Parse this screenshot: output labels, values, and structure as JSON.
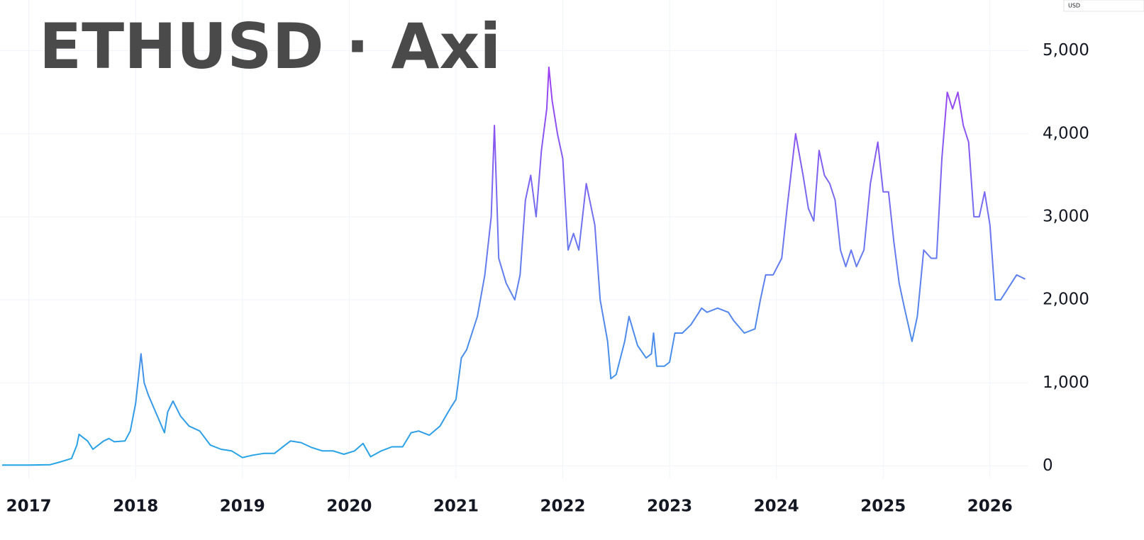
{
  "chart_data": {
    "type": "line",
    "title": "ETHUSD · Axi",
    "y_unit": "USD",
    "x": [
      2016.75,
      2017.0,
      2017.2,
      2017.3,
      2017.4,
      2017.45,
      2017.47,
      2017.55,
      2017.6,
      2017.7,
      2017.75,
      2017.8,
      2017.9,
      2017.95,
      2018.0,
      2018.03,
      2018.05,
      2018.08,
      2018.12,
      2018.17,
      2018.22,
      2018.27,
      2018.3,
      2018.35,
      2018.42,
      2018.5,
      2018.6,
      2018.7,
      2018.8,
      2018.9,
      2019.0,
      2019.1,
      2019.2,
      2019.3,
      2019.4,
      2019.45,
      2019.55,
      2019.65,
      2019.75,
      2019.85,
      2019.95,
      2020.05,
      2020.13,
      2020.2,
      2020.3,
      2020.4,
      2020.5,
      2020.58,
      2020.65,
      2020.75,
      2020.85,
      2020.95,
      2021.0,
      2021.05,
      2021.1,
      2021.15,
      2021.2,
      2021.27,
      2021.33,
      2021.36,
      2021.4,
      2021.47,
      2021.55,
      2021.6,
      2021.65,
      2021.7,
      2021.75,
      2021.8,
      2021.85,
      2021.87,
      2021.9,
      2021.95,
      2022.0,
      2022.05,
      2022.1,
      2022.15,
      2022.22,
      2022.3,
      2022.35,
      2022.42,
      2022.45,
      2022.5,
      2022.58,
      2022.62,
      2022.7,
      2022.78,
      2022.83,
      2022.85,
      2022.88,
      2022.95,
      2023.0,
      2023.05,
      2023.12,
      2023.2,
      2023.3,
      2023.35,
      2023.45,
      2023.55,
      2023.6,
      2023.7,
      2023.8,
      2023.85,
      2023.9,
      2023.97,
      2024.05,
      2024.1,
      2024.18,
      2024.25,
      2024.3,
      2024.35,
      2024.4,
      2024.45,
      2024.5,
      2024.55,
      2024.6,
      2024.65,
      2024.7,
      2024.75,
      2024.82,
      2024.88,
      2024.95,
      2025.0,
      2025.05,
      2025.1,
      2025.15,
      2025.2,
      2025.27,
      2025.32,
      2025.38,
      2025.45,
      2025.5,
      2025.55,
      2025.6,
      2025.65,
      2025.7,
      2025.75,
      2025.8,
      2025.85,
      2025.9,
      2025.95,
      2026.0,
      2026.05,
      2026.1,
      2026.15,
      2026.25,
      2026.33
    ],
    "values": [
      10,
      10,
      15,
      50,
      90,
      250,
      380,
      300,
      200,
      300,
      330,
      290,
      300,
      420,
      750,
      1100,
      1350,
      1000,
      850,
      700,
      550,
      400,
      650,
      780,
      600,
      480,
      420,
      250,
      200,
      180,
      100,
      130,
      150,
      150,
      250,
      300,
      280,
      220,
      180,
      180,
      140,
      180,
      270,
      110,
      180,
      230,
      230,
      400,
      420,
      370,
      480,
      700,
      800,
      1300,
      1400,
      1600,
      1800,
      2300,
      3000,
      4100,
      2500,
      2200,
      2000,
      2300,
      3200,
      3500,
      3000,
      3800,
      4300,
      4800,
      4400,
      4000,
      3700,
      2600,
      2800,
      2600,
      3400,
      2900,
      2000,
      1500,
      1050,
      1100,
      1500,
      1800,
      1450,
      1300,
      1350,
      1600,
      1200,
      1200,
      1250,
      1600,
      1600,
      1700,
      1900,
      1850,
      1900,
      1850,
      1750,
      1600,
      1650,
      2000,
      2300,
      2300,
      2500,
      3100,
      4000,
      3500,
      3100,
      2950,
      3800,
      3500,
      3400,
      3200,
      2600,
      2400,
      2600,
      2400,
      2600,
      3400,
      3900,
      3300,
      3300,
      2700,
      2200,
      1900,
      1500,
      1800,
      2600,
      2500,
      2500,
      3700,
      4500,
      4300,
      4500,
      4100,
      3900,
      3000,
      3000,
      3300,
      2900,
      2000,
      2000,
      2100,
      2300,
      2250
    ],
    "gradient": [
      "#1fa8e4",
      "#6a78f0",
      "#b02df2"
    ],
    "xlim": [
      2016.73,
      2026.36
    ],
    "xticks": [
      2017,
      2018,
      2019,
      2020,
      2021,
      2022,
      2023,
      2024,
      2025,
      2026
    ],
    "ylim": [
      -150,
      5500
    ],
    "yticks": [
      0,
      {
        "value": 1000,
        "label": "1,000"
      },
      {
        "value": 2000,
        "label": "2,000"
      },
      {
        "value": 3000,
        "label": "3,000"
      },
      {
        "value": 4000,
        "label": "4,000"
      },
      {
        "value": 5000,
        "label": "5,000"
      }
    ],
    "grid": true
  }
}
